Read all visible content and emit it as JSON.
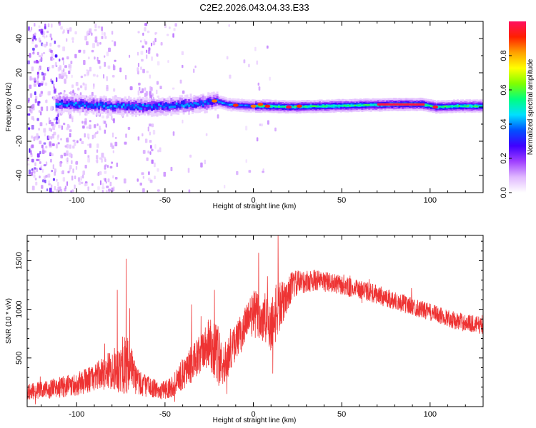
{
  "title": "C2E2.2026.043.04.33.E33",
  "colors": {
    "snr_line": "#ee3333",
    "frame": "#000000",
    "background": "#ffffff"
  },
  "chart_data": [
    {
      "type": "heatmap",
      "name": "spectrogram",
      "xlabel": "Height of straight line (km)",
      "ylabel": "Frequency (Hz)",
      "xlim": [
        -128,
        130
      ],
      "ylim": [
        -50,
        50
      ],
      "xticks": [
        -100,
        -50,
        0,
        50,
        100
      ],
      "yticks": [
        -40,
        -20,
        0,
        20,
        40
      ],
      "xtick_labels": [
        "-100",
        "-50",
        "0",
        "50",
        "100"
      ],
      "ytick_labels": [
        "-40",
        "-20",
        "0",
        "20",
        "40"
      ],
      "colorbar": {
        "label": "Normalized spectral amplitude",
        "range": [
          0,
          1
        ],
        "ticks": [
          0.0,
          0.2,
          0.4,
          0.6,
          0.8
        ],
        "tick_labels": [
          "0.0",
          "0.2",
          "0.4",
          "0.6",
          "0.8"
        ],
        "colors": [
          "#ffffff",
          "#e0b8ff",
          "#a040ff",
          "#4000ff",
          "#0050ff",
          "#00e0ff",
          "#00ff80",
          "#80ff00",
          "#ffff00",
          "#ffa000",
          "#ff2000",
          "#ff1060"
        ]
      },
      "ridge": [
        {
          "x": -112,
          "y": 2.0,
          "amp": 0.4
        },
        {
          "x": -100,
          "y": 1.5,
          "amp": 0.45
        },
        {
          "x": -90,
          "y": 1.0,
          "amp": 0.45
        },
        {
          "x": -75,
          "y": 0.5,
          "amp": 0.5
        },
        {
          "x": -60,
          "y": 0.0,
          "amp": 0.5
        },
        {
          "x": -45,
          "y": 1.0,
          "amp": 0.55
        },
        {
          "x": -30,
          "y": 2.0,
          "amp": 0.6
        },
        {
          "x": -22,
          "y": 3.5,
          "amp": 0.75
        },
        {
          "x": -15,
          "y": 1.5,
          "amp": 0.6
        },
        {
          "x": -10,
          "y": 1.0,
          "amp": 0.8
        },
        {
          "x": 0,
          "y": 0.5,
          "amp": 0.75
        },
        {
          "x": 8,
          "y": 0.5,
          "amp": 0.85
        },
        {
          "x": 20,
          "y": 0.0,
          "amp": 0.9
        },
        {
          "x": 40,
          "y": 0.5,
          "amp": 0.75
        },
        {
          "x": 60,
          "y": 1.0,
          "amp": 0.7
        },
        {
          "x": 80,
          "y": 1.5,
          "amp": 0.95
        },
        {
          "x": 95,
          "y": 1.5,
          "amp": 0.95
        },
        {
          "x": 103,
          "y": 0.0,
          "amp": 0.9
        },
        {
          "x": 115,
          "y": 0.5,
          "amp": 0.6
        },
        {
          "x": 130,
          "y": 0.5,
          "amp": 0.55
        }
      ]
    },
    {
      "type": "line",
      "name": "snr",
      "xlabel": "Height of straight line (km)",
      "ylabel": "SNR (10 * v/v)",
      "xlim": [
        -128,
        130
      ],
      "ylim": [
        0,
        1760
      ],
      "xticks": [
        -100,
        -50,
        0,
        50,
        100
      ],
      "yticks": [
        500,
        1000,
        1500
      ],
      "xtick_labels": [
        "-100",
        "-50",
        "0",
        "50",
        "100"
      ],
      "ytick_labels": [
        "500",
        "1000",
        "1500"
      ],
      "envelope": {
        "x": [
          -128,
          -115,
          -100,
          -90,
          -80,
          -72,
          -65,
          -58,
          -52,
          -45,
          -38,
          -30,
          -25,
          -20,
          -15,
          -12,
          -8,
          -4,
          0,
          5,
          10,
          14,
          18,
          22,
          28,
          35,
          45,
          55,
          65,
          75,
          85,
          95,
          105,
          115,
          125,
          130
        ],
        "mean": [
          150,
          180,
          230,
          300,
          380,
          420,
          250,
          200,
          160,
          220,
          380,
          520,
          680,
          520,
          450,
          600,
          720,
          850,
          960,
          900,
          850,
          1000,
          1100,
          1250,
          1280,
          1300,
          1270,
          1220,
          1180,
          1120,
          1060,
          1000,
          940,
          880,
          850,
          830
        ],
        "amp": [
          80,
          100,
          120,
          140,
          200,
          320,
          150,
          100,
          90,
          120,
          180,
          220,
          280,
          320,
          200,
          180,
          200,
          220,
          250,
          280,
          300,
          300,
          180,
          150,
          120,
          110,
          100,
          100,
          100,
          100,
          95,
          90,
          90,
          90,
          90,
          90
        ]
      },
      "spikes": [
        {
          "x": -72,
          "y": 1520
        },
        {
          "x": -77,
          "y": 1200
        },
        {
          "x": -70,
          "y": 1010
        },
        {
          "x": -35,
          "y": 1050
        },
        {
          "x": -22,
          "y": 1200
        },
        {
          "x": -13,
          "y": 800
        },
        {
          "x": 3,
          "y": 1580
        },
        {
          "x": 8,
          "y": 1340
        },
        {
          "x": 14,
          "y": 1760
        },
        {
          "x": 11,
          "y": 340
        },
        {
          "x": -15,
          "y": 130
        }
      ]
    }
  ]
}
